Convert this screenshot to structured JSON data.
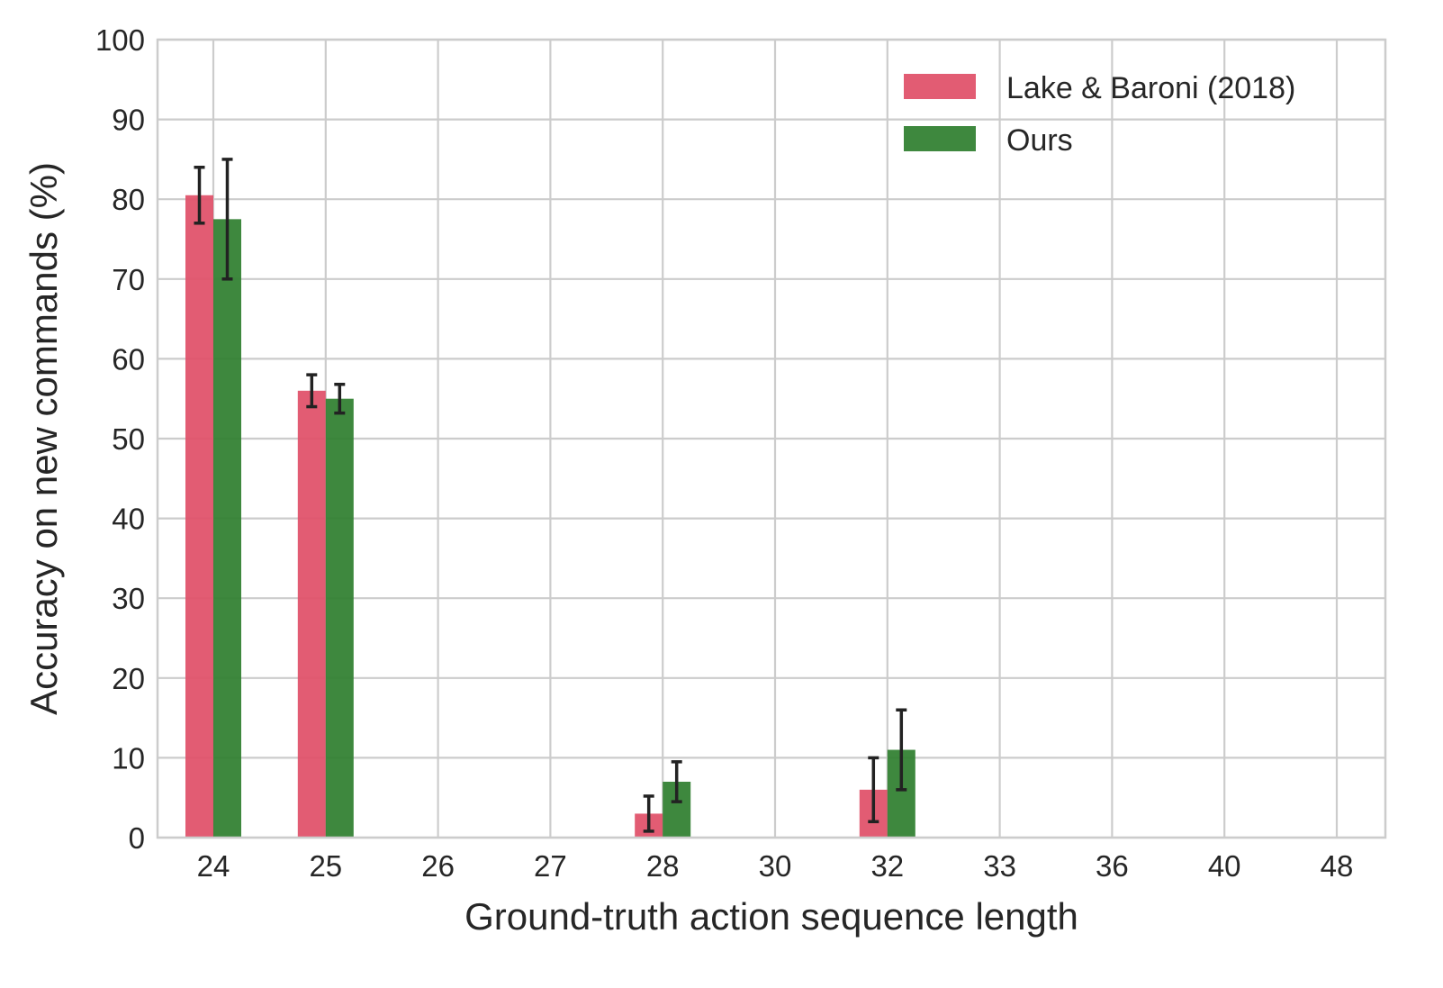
{
  "chart_data": {
    "type": "bar",
    "title": "",
    "xlabel": "Ground-truth action sequence length",
    "ylabel": "Accuracy on new commands (%)",
    "categories": [
      "24",
      "25",
      "26",
      "27",
      "28",
      "30",
      "32",
      "33",
      "36",
      "40",
      "48"
    ],
    "ylim": [
      0,
      100
    ],
    "yticks": [
      0,
      10,
      20,
      30,
      40,
      50,
      60,
      70,
      80,
      90,
      100
    ],
    "grid": true,
    "legend_position": "top-right",
    "series": [
      {
        "name": "Lake & Baroni (2018)",
        "color": "#e05068",
        "values": [
          80.5,
          56,
          0,
          0,
          3,
          0,
          6,
          0,
          0,
          0,
          0
        ],
        "errors": [
          3.5,
          2,
          0,
          0,
          2.2,
          0,
          4,
          0,
          0,
          0,
          0
        ]
      },
      {
        "name": "Ours",
        "color": "#2f7f2f",
        "values": [
          77.5,
          55,
          0,
          0,
          7,
          0,
          11,
          0,
          0,
          0,
          0
        ],
        "errors": [
          7.5,
          1.8,
          0,
          0,
          2.5,
          0,
          5,
          0,
          0,
          0,
          0
        ]
      }
    ]
  }
}
